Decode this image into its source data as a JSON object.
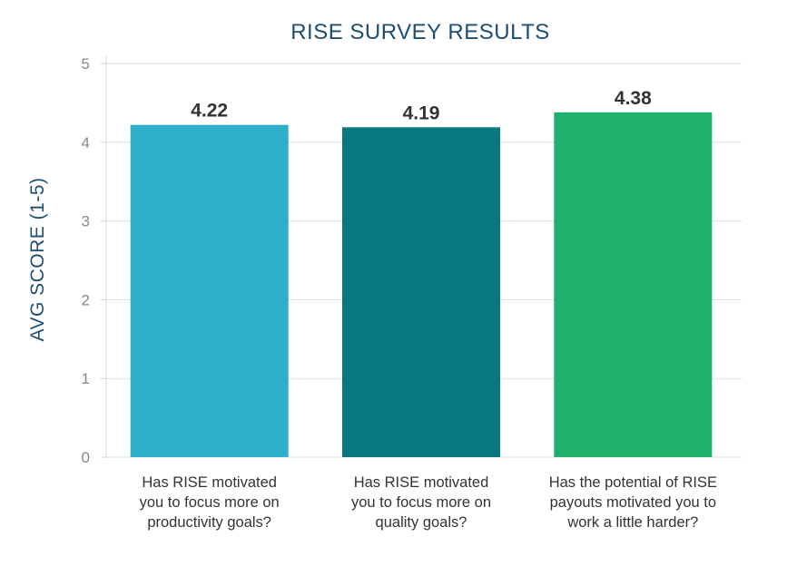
{
  "chart_data": {
    "type": "bar",
    "title": "RISE SURVEY RESULTS",
    "xlabel": "",
    "ylabel": "AVG SCORE (1-5)",
    "ylim": [
      0,
      5
    ],
    "yticks": [
      "0",
      "1",
      "2",
      "3",
      "4",
      "5"
    ],
    "grid": true,
    "legend": "none",
    "categories": [
      [
        "Has RISE motivated",
        "you to focus more on",
        "productivity goals?"
      ],
      [
        "Has RISE motivated",
        "you to focus more on",
        "quality goals?"
      ],
      [
        "Has the potential of RISE",
        "payouts motivated you to",
        "work a little harder?"
      ]
    ],
    "values": [
      4.22,
      4.19,
      4.38
    ],
    "value_labels": [
      "4.22",
      "4.19",
      "4.38"
    ],
    "colors": [
      "#2eafc8",
      "#087880",
      "#1db16d"
    ]
  }
}
